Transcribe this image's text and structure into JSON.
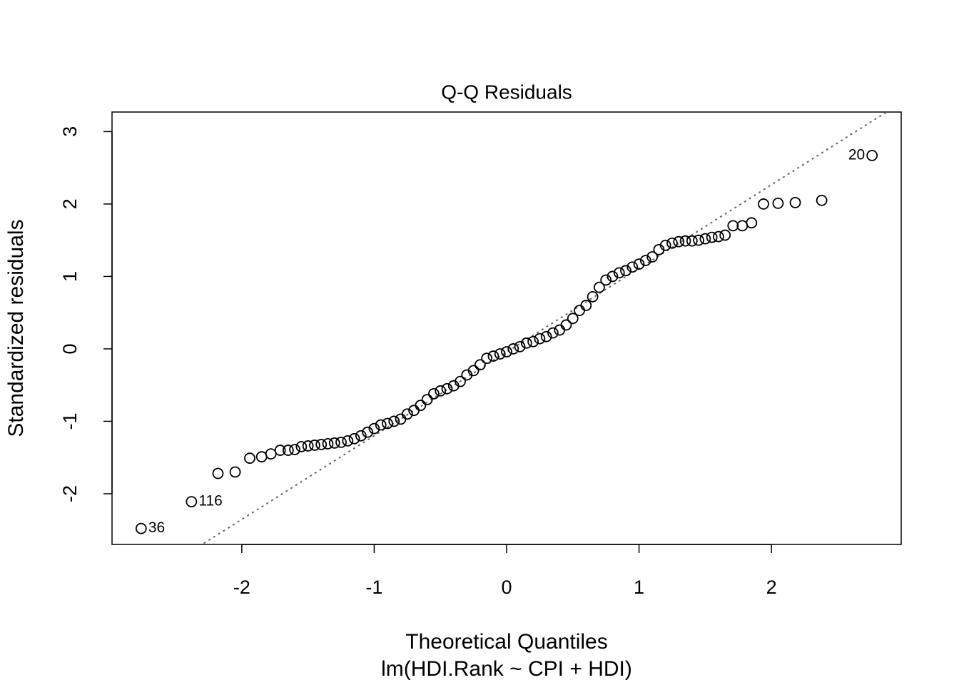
{
  "chart_data": {
    "type": "scatter",
    "title": "Q-Q Residuals",
    "x_label": "Theoretical Quantiles",
    "subtitle": "lm(HDI.Rank ~ CPI + HDI)",
    "y_label": "Standardized residuals",
    "xlim": [
      -2.98,
      2.98
    ],
    "ylim": [
      -2.7,
      3.27
    ],
    "xticks": [
      -2,
      -1,
      0,
      1,
      2
    ],
    "yticks": [
      -2,
      -1,
      0,
      1,
      2,
      3
    ],
    "color": "#000000",
    "reference_line": {
      "slope": 1.155,
      "intercept": -0.044,
      "color": "#666666"
    },
    "x": [
      -2.76,
      -2.38,
      -2.18,
      -2.05,
      -1.94,
      -1.85,
      -1.78,
      -1.71,
      -1.65,
      -1.6,
      -1.55,
      -1.5,
      -1.45,
      -1.4,
      -1.35,
      -1.3,
      -1.25,
      -1.2,
      -1.15,
      -1.1,
      -1.05,
      -1.0,
      -0.95,
      -0.9,
      -0.85,
      -0.8,
      -0.75,
      -0.7,
      -0.65,
      -0.6,
      -0.55,
      -0.5,
      -0.45,
      -0.4,
      -0.35,
      -0.3,
      -0.25,
      -0.2,
      -0.15,
      -0.1,
      -0.05,
      0.0,
      0.05,
      0.1,
      0.15,
      0.2,
      0.25,
      0.3,
      0.35,
      0.4,
      0.45,
      0.5,
      0.55,
      0.6,
      0.65,
      0.7,
      0.75,
      0.8,
      0.85,
      0.9,
      0.95,
      1.0,
      1.05,
      1.1,
      1.15,
      1.2,
      1.25,
      1.3,
      1.35,
      1.4,
      1.45,
      1.5,
      1.55,
      1.6,
      1.65,
      1.71,
      1.78,
      1.85,
      1.94,
      2.05,
      2.18,
      2.38,
      2.76
    ],
    "values": [
      -2.48,
      -2.11,
      -1.72,
      -1.7,
      -1.51,
      -1.49,
      -1.45,
      -1.4,
      -1.4,
      -1.39,
      -1.35,
      -1.34,
      -1.33,
      -1.32,
      -1.31,
      -1.3,
      -1.29,
      -1.27,
      -1.24,
      -1.2,
      -1.15,
      -1.1,
      -1.05,
      -1.03,
      -1.0,
      -0.97,
      -0.9,
      -0.85,
      -0.78,
      -0.7,
      -0.62,
      -0.58,
      -0.55,
      -0.51,
      -0.45,
      -0.36,
      -0.3,
      -0.22,
      -0.13,
      -0.1,
      -0.07,
      -0.04,
      0.0,
      0.03,
      0.08,
      0.1,
      0.14,
      0.17,
      0.22,
      0.26,
      0.33,
      0.42,
      0.53,
      0.6,
      0.72,
      0.85,
      0.95,
      1.0,
      1.05,
      1.08,
      1.13,
      1.17,
      1.22,
      1.27,
      1.37,
      1.43,
      1.46,
      1.48,
      1.49,
      1.49,
      1.5,
      1.52,
      1.54,
      1.55,
      1.57,
      1.7,
      1.7,
      1.74,
      2.0,
      2.01,
      2.02,
      2.05,
      2.67
    ],
    "annotations": [
      {
        "text": "36",
        "x": -2.76,
        "y": -2.48
      },
      {
        "text": "116",
        "x": -2.38,
        "y": -2.11
      },
      {
        "text": "20",
        "x": 2.76,
        "y": 2.67
      }
    ]
  }
}
